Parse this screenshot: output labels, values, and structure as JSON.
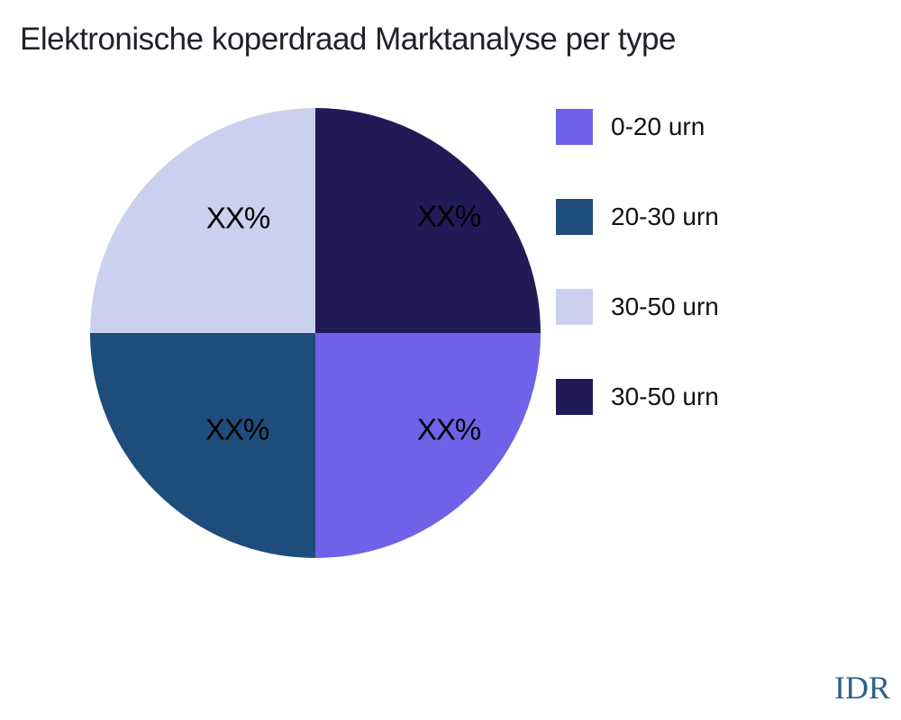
{
  "header": {
    "title": "Elektronische koperdraad Marktanalyse per type"
  },
  "chart_data": {
    "type": "pie",
    "title": "Elektronische koperdraad Marktanalyse per type",
    "categories": [
      "0-20 urn",
      "20-30 urn",
      "30-50 urn",
      "30-50 urn"
    ],
    "values": [
      25,
      25,
      25,
      25
    ],
    "slice_labels": [
      "XX%",
      "XX%",
      "XX%",
      "XX%"
    ],
    "colors": [
      "#6f62e8",
      "#1f4d7b",
      "#cbd0ef",
      "#211a57"
    ],
    "legend_position": "right",
    "start_angle_deg": 0,
    "direction": "clockwise",
    "label_color": "#000000",
    "background": "#ffffff"
  },
  "watermark": {
    "text": "IDR",
    "color": "#2e5f8a"
  }
}
